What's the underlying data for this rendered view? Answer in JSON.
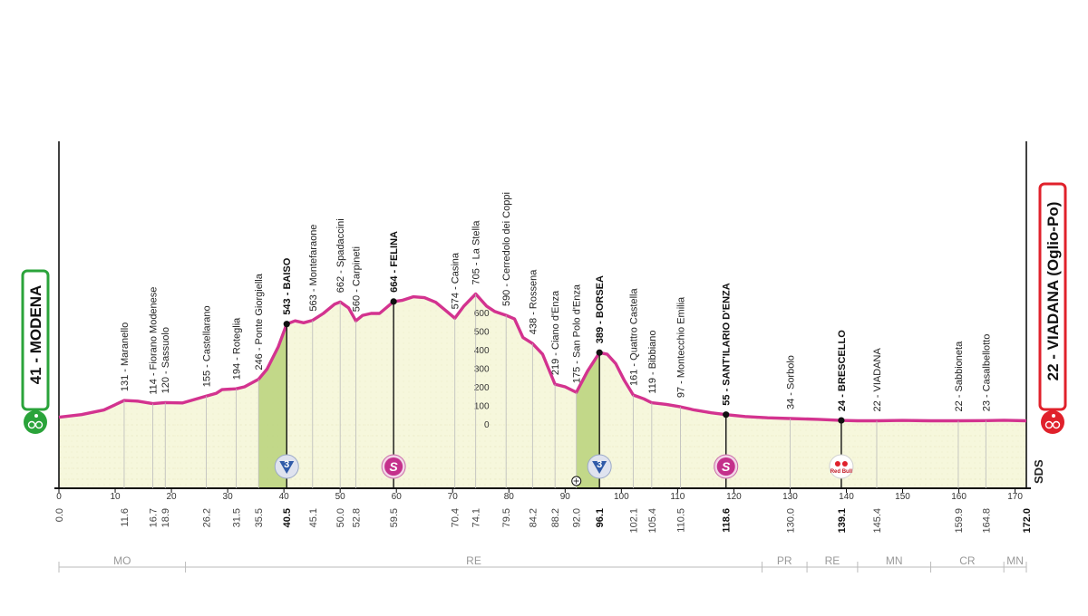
{
  "chart_data": {
    "type": "area",
    "title": "",
    "xlabel": "",
    "ylabel": "",
    "xlim": [
      0,
      172
    ],
    "ylim": [
      0,
      800
    ],
    "start": {
      "label": "41 - MODENA",
      "km": 0.0,
      "alt": 41
    },
    "finish": {
      "label": "22 - VIADANA (Oglio-Po)",
      "km": 172.0,
      "alt": 22
    },
    "x_ticks": [
      0,
      10,
      20,
      30,
      40,
      50,
      60,
      70,
      80,
      90,
      100,
      110,
      120,
      130,
      140,
      150,
      160,
      170
    ],
    "altitude_scale": [
      0,
      100,
      200,
      300,
      400,
      500,
      600
    ],
    "profile": [
      [
        0,
        41
      ],
      [
        4,
        55
      ],
      [
        8,
        80
      ],
      [
        11.6,
        131
      ],
      [
        14,
        128
      ],
      [
        16.7,
        114
      ],
      [
        18.9,
        120
      ],
      [
        22,
        118
      ],
      [
        26.2,
        155
      ],
      [
        28,
        170
      ],
      [
        29,
        190
      ],
      [
        31.5,
        194
      ],
      [
        33,
        205
      ],
      [
        35.5,
        246
      ],
      [
        37,
        300
      ],
      [
        39,
        420
      ],
      [
        40.5,
        543
      ],
      [
        42,
        560
      ],
      [
        43.5,
        550
      ],
      [
        45.1,
        563
      ],
      [
        47,
        600
      ],
      [
        49,
        650
      ],
      [
        50,
        662
      ],
      [
        51.5,
        630
      ],
      [
        52.8,
        560
      ],
      [
        54,
        590
      ],
      [
        55.5,
        600
      ],
      [
        57,
        600
      ],
      [
        59.5,
        664
      ],
      [
        61,
        670
      ],
      [
        63,
        690
      ],
      [
        65,
        685
      ],
      [
        67,
        660
      ],
      [
        69,
        610
      ],
      [
        70.4,
        574
      ],
      [
        72,
        640
      ],
      [
        74.1,
        705
      ],
      [
        76,
        640
      ],
      [
        77.5,
        610
      ],
      [
        79.5,
        590
      ],
      [
        81,
        570
      ],
      [
        82.5,
        470
      ],
      [
        84.2,
        438
      ],
      [
        86,
        380
      ],
      [
        88.2,
        219
      ],
      [
        90,
        205
      ],
      [
        92,
        175
      ],
      [
        94,
        290
      ],
      [
        96.1,
        389
      ],
      [
        97.5,
        380
      ],
      [
        99,
        330
      ],
      [
        100.5,
        240
      ],
      [
        102.1,
        161
      ],
      [
        104,
        140
      ],
      [
        105.4,
        119
      ],
      [
        108,
        110
      ],
      [
        110.5,
        97
      ],
      [
        113,
        80
      ],
      [
        116,
        65
      ],
      [
        118.6,
        55
      ],
      [
        122,
        45
      ],
      [
        126,
        38
      ],
      [
        130,
        34
      ],
      [
        135,
        30
      ],
      [
        139.1,
        24
      ],
      [
        142,
        22
      ],
      [
        145.4,
        22
      ],
      [
        150,
        24
      ],
      [
        155,
        22
      ],
      [
        159.9,
        22
      ],
      [
        164.8,
        23
      ],
      [
        168,
        25
      ],
      [
        172,
        22
      ]
    ],
    "places": [
      {
        "km": 11.6,
        "alt": 131,
        "text": "131 - Maranello",
        "bold": false
      },
      {
        "km": 16.7,
        "alt": 114,
        "text": "114 - Fiorano Modenese",
        "bold": false
      },
      {
        "km": 18.9,
        "alt": 120,
        "text": "120 - Sassuolo",
        "bold": false
      },
      {
        "km": 26.2,
        "alt": 155,
        "text": "155 - Castellarano",
        "bold": false
      },
      {
        "km": 31.5,
        "alt": 194,
        "text": "194 - Roteglia",
        "bold": false
      },
      {
        "km": 35.5,
        "alt": 246,
        "text": "246 - Ponte Giorgiella",
        "bold": false
      },
      {
        "km": 40.5,
        "alt": 543,
        "text": "543 - BAISO",
        "bold": true
      },
      {
        "km": 45.1,
        "alt": 563,
        "text": "563 - Montefaraone",
        "bold": false
      },
      {
        "km": 50.0,
        "alt": 662,
        "text": "662 - Spadaccini",
        "bold": false
      },
      {
        "km": 52.8,
        "alt": 560,
        "text": "560 - Carpineti",
        "bold": false
      },
      {
        "km": 59.5,
        "alt": 664,
        "text": "664 - FELINA",
        "bold": true
      },
      {
        "km": 70.4,
        "alt": 574,
        "text": "574 - Casina",
        "bold": false
      },
      {
        "km": 74.1,
        "alt": 705,
        "text": "705 - La Stella",
        "bold": false
      },
      {
        "km": 79.5,
        "alt": 590,
        "text": "590 - Cerredolo dei Coppi",
        "bold": false
      },
      {
        "km": 84.2,
        "alt": 438,
        "text": "438 - Rossena",
        "bold": false
      },
      {
        "km": 88.2,
        "alt": 219,
        "text": "219 - Ciano d'Enza",
        "bold": false
      },
      {
        "km": 92.0,
        "alt": 175,
        "text": "175 - San Polo d'Enza",
        "bold": false
      },
      {
        "km": 96.1,
        "alt": 389,
        "text": "389 - BORSEA",
        "bold": true
      },
      {
        "km": 102.1,
        "alt": 161,
        "text": "161 - Quattro Castella",
        "bold": false
      },
      {
        "km": 105.4,
        "alt": 119,
        "text": "119 - Bibbiano",
        "bold": false
      },
      {
        "km": 110.5,
        "alt": 97,
        "text": "97 - Montecchio Emilia",
        "bold": false
      },
      {
        "km": 118.6,
        "alt": 55,
        "text": "55 - SANT'ILARIO D'ENZA",
        "bold": true
      },
      {
        "km": 130.0,
        "alt": 34,
        "text": "34 - Sorbolo",
        "bold": false
      },
      {
        "km": 139.1,
        "alt": 24,
        "text": "24 - BRESCELLO",
        "bold": true
      },
      {
        "km": 145.4,
        "alt": 22,
        "text": "22 - VIADANA",
        "bold": false
      },
      {
        "km": 159.9,
        "alt": 22,
        "text": "22 - Sabbioneta",
        "bold": false
      },
      {
        "km": 164.8,
        "alt": 23,
        "text": "23 - Casalbellotto",
        "bold": false
      }
    ],
    "km_marks": [
      {
        "km": 0.0,
        "text": "0.0",
        "bold": false
      },
      {
        "km": 11.6,
        "text": "11.6",
        "bold": false
      },
      {
        "km": 16.7,
        "text": "16.7",
        "bold": false
      },
      {
        "km": 18.9,
        "text": "18.9",
        "bold": false
      },
      {
        "km": 26.2,
        "text": "26.2",
        "bold": false
      },
      {
        "km": 31.5,
        "text": "31.5",
        "bold": false
      },
      {
        "km": 35.5,
        "text": "35.5",
        "bold": false
      },
      {
        "km": 40.5,
        "text": "40.5",
        "bold": true
      },
      {
        "km": 45.1,
        "text": "45.1",
        "bold": false
      },
      {
        "km": 50.0,
        "text": "50.0",
        "bold": false
      },
      {
        "km": 52.8,
        "text": "52.8",
        "bold": false
      },
      {
        "km": 59.5,
        "text": "59.5",
        "bold": false
      },
      {
        "km": 70.4,
        "text": "70.4",
        "bold": false
      },
      {
        "km": 74.1,
        "text": "74.1",
        "bold": false
      },
      {
        "km": 79.5,
        "text": "79.5",
        "bold": false
      },
      {
        "km": 84.2,
        "text": "84.2",
        "bold": false
      },
      {
        "km": 88.2,
        "text": "88.2",
        "bold": false
      },
      {
        "km": 92.0,
        "text": "92.0",
        "bold": false
      },
      {
        "km": 96.1,
        "text": "96.1",
        "bold": true
      },
      {
        "km": 102.1,
        "text": "102.1",
        "bold": false
      },
      {
        "km": 105.4,
        "text": "105.4",
        "bold": false
      },
      {
        "km": 110.5,
        "text": "110.5",
        "bold": false
      },
      {
        "km": 118.6,
        "text": "118.6",
        "bold": true
      },
      {
        "km": 130.0,
        "text": "130.0",
        "bold": false
      },
      {
        "km": 139.1,
        "text": "139.1",
        "bold": true
      },
      {
        "km": 145.4,
        "text": "145.4",
        "bold": false
      },
      {
        "km": 159.9,
        "text": "159.9",
        "bold": false
      },
      {
        "km": 164.8,
        "text": "164.8",
        "bold": false
      },
      {
        "km": 172.0,
        "text": "172.0",
        "bold": true
      }
    ],
    "climbs": [
      {
        "start_km": 35.5,
        "top_km": 40.5,
        "category": "3"
      },
      {
        "start_km": 92.0,
        "top_km": 96.1,
        "category": "3"
      }
    ],
    "sprints": [
      {
        "km": 59.5,
        "label": "S"
      },
      {
        "km": 118.6,
        "label": "S"
      }
    ],
    "bonus": [
      {
        "km": 139.1,
        "label": "Red Bull"
      }
    ],
    "level_crossing_km": 92.0,
    "brand_mark": "SDS",
    "provinces": [
      {
        "label": "MO",
        "from_km": 0,
        "to_km": 22.5
      },
      {
        "label": "RE",
        "from_km": 22.5,
        "to_km": 125
      },
      {
        "label": "PR",
        "from_km": 125,
        "to_km": 133
      },
      {
        "label": "RE",
        "from_km": 133,
        "to_km": 142
      },
      {
        "label": "MN",
        "from_km": 142,
        "to_km": 155
      },
      {
        "label": "CR",
        "from_km": 155,
        "to_km": 168
      },
      {
        "label": "MN",
        "from_km": 168,
        "to_km": 172
      }
    ],
    "colors": {
      "profile_line": "#d3338f",
      "fill": "#f6f7dc",
      "climb_fill": "#b9d27a",
      "start_badge": "#2aa33a",
      "finish_badge": "#e0212b",
      "climb_badge": "#2f5aa8",
      "sprint_badge": "#c4308b"
    }
  }
}
